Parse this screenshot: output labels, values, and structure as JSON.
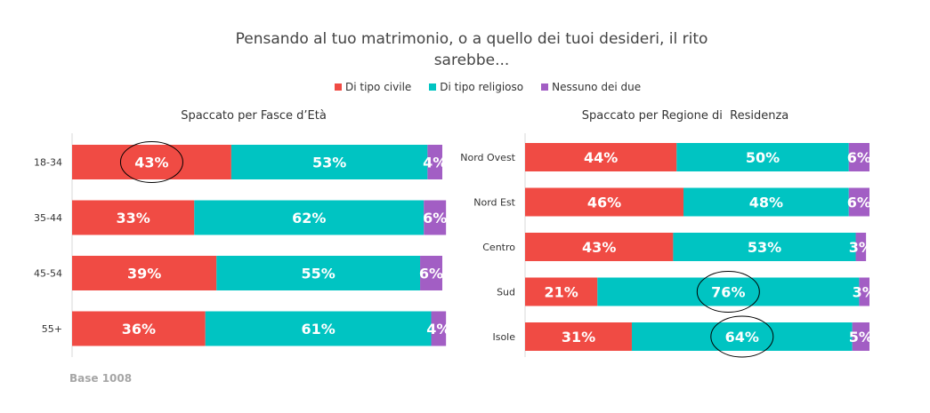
{
  "title": "Pensando al tuo matrimonio, o a quello dei tuoi desideri, il rito sarebbe...",
  "legend": [
    {
      "label": "Di tipo civile",
      "color": "#f04b44"
    },
    {
      "label": "Di tipo religioso",
      "color": "#00c4c2"
    },
    {
      "label": "Nessuno dei due",
      "color": "#a25ec4"
    }
  ],
  "base_note": "Base 1008",
  "chart_data": [
    {
      "type": "bar",
      "orientation": "horizontal-stacked-100",
      "title": "Spaccato per Fasce d’Età",
      "categories": [
        "18-34",
        "35-44",
        "45-54",
        "55+"
      ],
      "series": [
        {
          "name": "Di tipo civile",
          "values": [
            43,
            33,
            39,
            36
          ],
          "labels": [
            "43%",
            "33%",
            "39%",
            "36%"
          ]
        },
        {
          "name": "Di tipo religioso",
          "values": [
            53,
            62,
            55,
            61
          ],
          "labels": [
            "53%",
            "62%",
            "55%",
            "61%"
          ]
        },
        {
          "name": "Nessuno dei due",
          "values": [
            4,
            6,
            6,
            4
          ],
          "labels": [
            "4%",
            "6%",
            "6%",
            "4%"
          ]
        }
      ],
      "xlim": [
        0,
        100
      ],
      "highlights": [
        {
          "category": "18-34",
          "series": "Di tipo civile"
        }
      ]
    },
    {
      "type": "bar",
      "orientation": "horizontal-stacked-100",
      "title": "Spaccato per Regione di  Residenza",
      "categories": [
        "Nord Ovest",
        "Nord Est",
        "Centro",
        "Sud",
        "Isole"
      ],
      "series": [
        {
          "name": "Di tipo civile",
          "values": [
            44,
            46,
            43,
            21,
            31
          ],
          "labels": [
            "44%",
            "46%",
            "43%",
            "21%",
            "31%"
          ]
        },
        {
          "name": "Di tipo religioso",
          "values": [
            50,
            48,
            53,
            76,
            64
          ],
          "labels": [
            "50%",
            "48%",
            "53%",
            "76%",
            "64%"
          ]
        },
        {
          "name": "Nessuno dei due",
          "values": [
            6,
            6,
            3,
            3,
            5
          ],
          "labels": [
            "6%",
            "6%",
            "3%",
            "3%",
            "5%"
          ]
        }
      ],
      "xlim": [
        0,
        100
      ],
      "highlights": [
        {
          "category": "Sud",
          "series": "Di tipo religioso"
        },
        {
          "category": "Isole",
          "series": "Di tipo religioso"
        }
      ]
    }
  ]
}
